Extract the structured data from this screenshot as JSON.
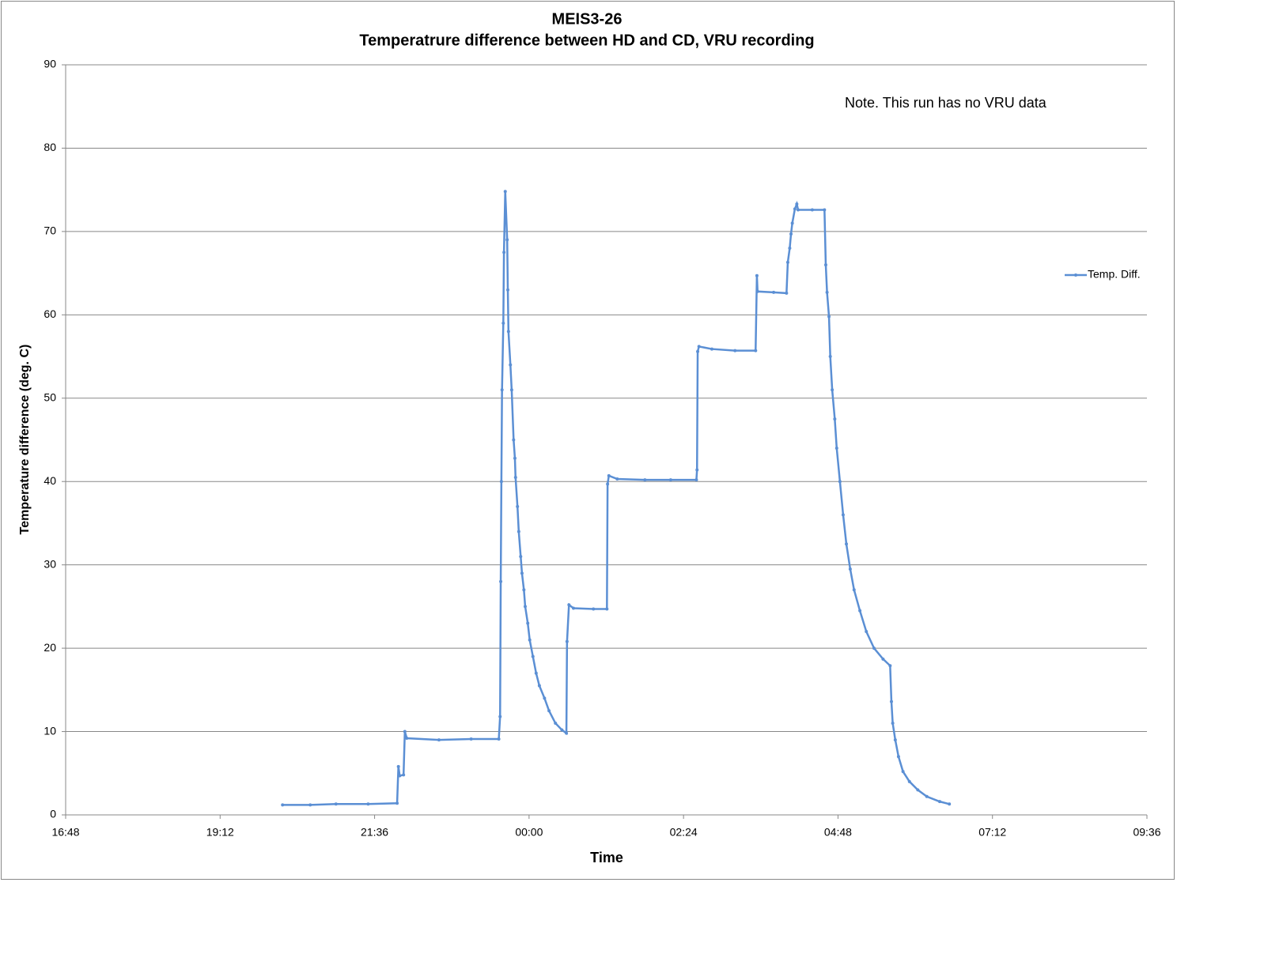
{
  "chart_data": {
    "type": "line",
    "title": "MEIS3-26",
    "subtitle": "Temperatrure difference between HD and CD, VRU recording",
    "x_label": "Time",
    "y_label": "Temperature difference (deg. C)",
    "annotation": "Note. This run has no VRU data",
    "legend_position": "right",
    "grid": true,
    "xlim": [
      16.8,
      33.6
    ],
    "xticks": [
      {
        "value": 16.8,
        "label": "16:48"
      },
      {
        "value": 19.2,
        "label": "19:12"
      },
      {
        "value": 21.6,
        "label": "21:36"
      },
      {
        "value": 24,
        "label": "00:00"
      },
      {
        "value": 26.4,
        "label": "02:24"
      },
      {
        "value": 28.8,
        "label": "04:48"
      },
      {
        "value": 31.2,
        "label": "07:12"
      },
      {
        "value": 33.6,
        "label": "09:36"
      }
    ],
    "ylim": [
      0,
      90
    ],
    "yticks": [
      0,
      10,
      20,
      30,
      40,
      50,
      60,
      70,
      80,
      90
    ],
    "x": [
      20.17,
      20.6,
      21.0,
      21.5,
      21.95,
      21.97,
      21.99,
      22.05,
      22.07,
      22.1,
      22.6,
      23.1,
      23.53,
      23.55,
      23.56,
      23.57,
      23.58,
      23.6,
      23.61,
      23.63,
      23.66,
      23.67,
      23.68,
      23.71,
      23.73,
      23.76,
      23.78,
      23.79,
      23.82,
      23.84,
      23.87,
      23.89,
      23.92,
      23.94,
      23.98,
      24.01,
      24.06,
      24.11,
      24.16,
      24.24,
      24.31,
      24.41,
      24.51,
      24.58,
      24.59,
      24.62,
      24.69,
      25.0,
      25.21,
      25.22,
      25.24,
      25.37,
      25.8,
      26.2,
      26.6,
      26.61,
      26.62,
      26.64,
      26.84,
      27.2,
      27.52,
      27.54,
      27.55,
      27.8,
      28.0,
      28.02,
      28.05,
      28.07,
      28.09,
      28.13,
      28.16,
      28.18,
      28.4,
      28.59,
      28.61,
      28.63,
      28.66,
      28.68,
      28.71,
      28.75,
      28.78,
      28.83,
      28.88,
      28.93,
      28.99,
      29.05,
      29.14,
      29.24,
      29.36,
      29.5,
      29.61,
      29.63,
      29.65,
      29.69,
      29.74,
      29.81,
      29.91,
      30.04,
      30.18,
      30.38,
      30.53
    ],
    "series": [
      {
        "name": "Temp. Diff.",
        "color": "#5b8fd4",
        "values": [
          1.2,
          1.2,
          1.3,
          1.3,
          1.4,
          5.8,
          4.7,
          4.8,
          10,
          9.2,
          9.0,
          9.1,
          9.1,
          11.8,
          28,
          40,
          51,
          59,
          67.5,
          74.8,
          69,
          63,
          58,
          54,
          51,
          45,
          42.8,
          40.5,
          37,
          34,
          31,
          29,
          27,
          25,
          23,
          21,
          19,
          17,
          15.5,
          14,
          12.5,
          11,
          10.2,
          9.8,
          20.8,
          25.2,
          24.8,
          24.7,
          24.7,
          39.7,
          40.7,
          40.3,
          40.2,
          40.2,
          40.2,
          41.4,
          55.6,
          56.2,
          55.9,
          55.7,
          55.7,
          64.7,
          62.8,
          62.7,
          62.6,
          66.3,
          68,
          69.7,
          71,
          72.7,
          73.3,
          72.6,
          72.6,
          72.6,
          66,
          62.7,
          59.8,
          55,
          51,
          47.5,
          44,
          40,
          36,
          32.5,
          29.5,
          27,
          24.5,
          22,
          20,
          18.7,
          17.9,
          13.6,
          11,
          9,
          7,
          5.2,
          4,
          3,
          2.2,
          1.6,
          1.3
        ]
      }
    ]
  }
}
